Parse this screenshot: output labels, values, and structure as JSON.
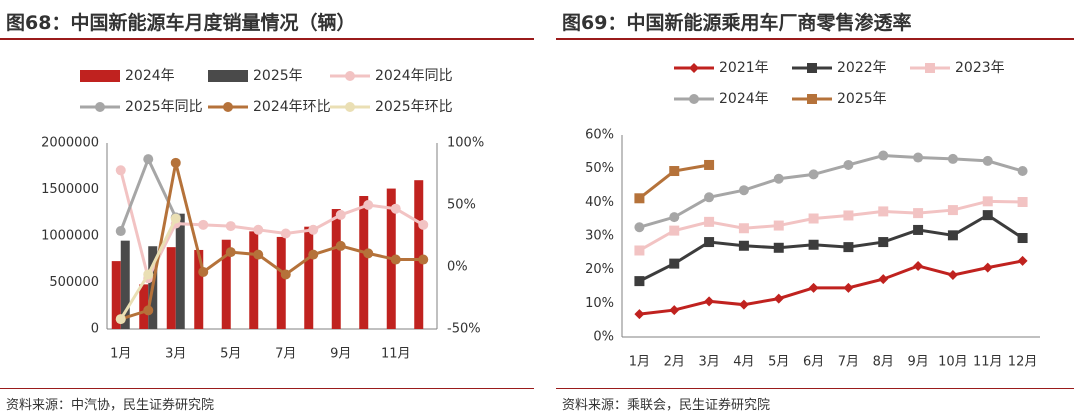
{
  "left": {
    "title": "图68：中国新能源车月度销量情况（辆）",
    "source": "资料来源：中汽协，民生证券研究院"
  },
  "right": {
    "title": "图69：中国新能源乘用车厂商零售渗透率",
    "source": "资料来源：乘联会，民生证券研究院"
  },
  "colors": {
    "bar2024": "#c0221f",
    "bar2025": "#4a4a4a",
    "yoy2024": "#f2c3c3",
    "yoy2025": "#a6a6a6",
    "mom2024": "#b5723a",
    "mom2025": "#eadfb4",
    "r2021": "#c0221f",
    "r2022": "#3c3c3c",
    "r2023": "#f2c3c3",
    "r2024": "#a6a6a6",
    "r2025": "#b5723a",
    "rule": "#9a1b1b"
  },
  "chart_data": [
    {
      "type": "bar",
      "x_tick_labels": [
        "1月",
        "",
        "3月",
        "",
        "5月",
        "",
        "7月",
        "",
        "9月",
        "",
        "11月",
        ""
      ],
      "y_left": {
        "ticks": [
          "0",
          "500000",
          "1000000",
          "1500000",
          "2000000"
        ],
        "ylim": [
          0,
          2000000
        ]
      },
      "y_right": {
        "ticks": [
          "-50%",
          "0%",
          "50%",
          "100%"
        ],
        "ylim": [
          -50,
          100
        ]
      },
      "legend": [
        "2024年",
        "2025年",
        "2024年同比",
        "2025年同比",
        "2024年环比",
        "2025年环比"
      ],
      "series": [
        {
          "name": "2024年",
          "kind": "bar",
          "axis": "left",
          "values": [
            730000,
            480000,
            880000,
            850000,
            960000,
            1050000,
            990000,
            1100000,
            1290000,
            1430000,
            1510000,
            1600000
          ]
        },
        {
          "name": "2025年",
          "kind": "bar",
          "axis": "left",
          "values": [
            950000,
            890000,
            1240000,
            null,
            null,
            null,
            null,
            null,
            null,
            null,
            null,
            null
          ]
        },
        {
          "name": "2024年同比",
          "kind": "line",
          "axis": "right",
          "values": [
            78,
            -9,
            35,
            34,
            33,
            30,
            27,
            30,
            42,
            50,
            47,
            34
          ]
        },
        {
          "name": "2025年同比",
          "kind": "line",
          "axis": "right",
          "values": [
            29,
            87,
            40,
            null,
            null,
            null,
            null,
            null,
            null,
            null,
            null,
            null
          ]
        },
        {
          "name": "2024年环比",
          "kind": "line",
          "axis": "right",
          "values": [
            -42,
            -35,
            84,
            -4,
            12,
            10,
            -6,
            10,
            17,
            11,
            6,
            6
          ]
        },
        {
          "name": "2025年环比",
          "kind": "line",
          "axis": "right",
          "values": [
            -42,
            -6,
            39,
            null,
            null,
            null,
            null,
            null,
            null,
            null,
            null,
            null
          ]
        }
      ]
    },
    {
      "type": "line",
      "x_tick_labels": [
        "1月",
        "2月",
        "3月",
        "4月",
        "5月",
        "6月",
        "7月",
        "8月",
        "9月",
        "10月",
        "11月",
        "12月"
      ],
      "y": {
        "ticks": [
          "0%",
          "10%",
          "20%",
          "30%",
          "40%",
          "50%",
          "60%"
        ],
        "ylim": [
          0,
          60
        ]
      },
      "legend": [
        "2021年",
        "2022年",
        "2023年",
        "2024年",
        "2025年"
      ],
      "series": [
        {
          "name": "2021年",
          "marker": "diamond",
          "values": [
            6.8,
            8,
            10.6,
            9.6,
            11.4,
            14.6,
            14.6,
            17.2,
            21.1,
            18.4,
            20.6,
            22.6
          ]
        },
        {
          "name": "2022年",
          "marker": "square",
          "values": [
            16.6,
            21.8,
            28.2,
            27.1,
            26.5,
            27.4,
            26.7,
            28.2,
            31.8,
            30.2,
            36.2,
            29.4
          ]
        },
        {
          "name": "2023年",
          "marker": "square",
          "values": [
            25.7,
            31.6,
            34.2,
            32.3,
            33.1,
            35.2,
            36.1,
            37.3,
            36.8,
            37.7,
            40.3,
            40.1
          ]
        },
        {
          "name": "2024年",
          "marker": "circle",
          "values": [
            32.6,
            35.6,
            41.5,
            43.6,
            47,
            48.3,
            51.1,
            53.9,
            53.3,
            52.9,
            52.3,
            49.3
          ]
        },
        {
          "name": "2025年",
          "marker": "square",
          "values": [
            41.2,
            49.3,
            51.1,
            null,
            null,
            null,
            null,
            null,
            null,
            null,
            null,
            null
          ]
        }
      ]
    }
  ]
}
